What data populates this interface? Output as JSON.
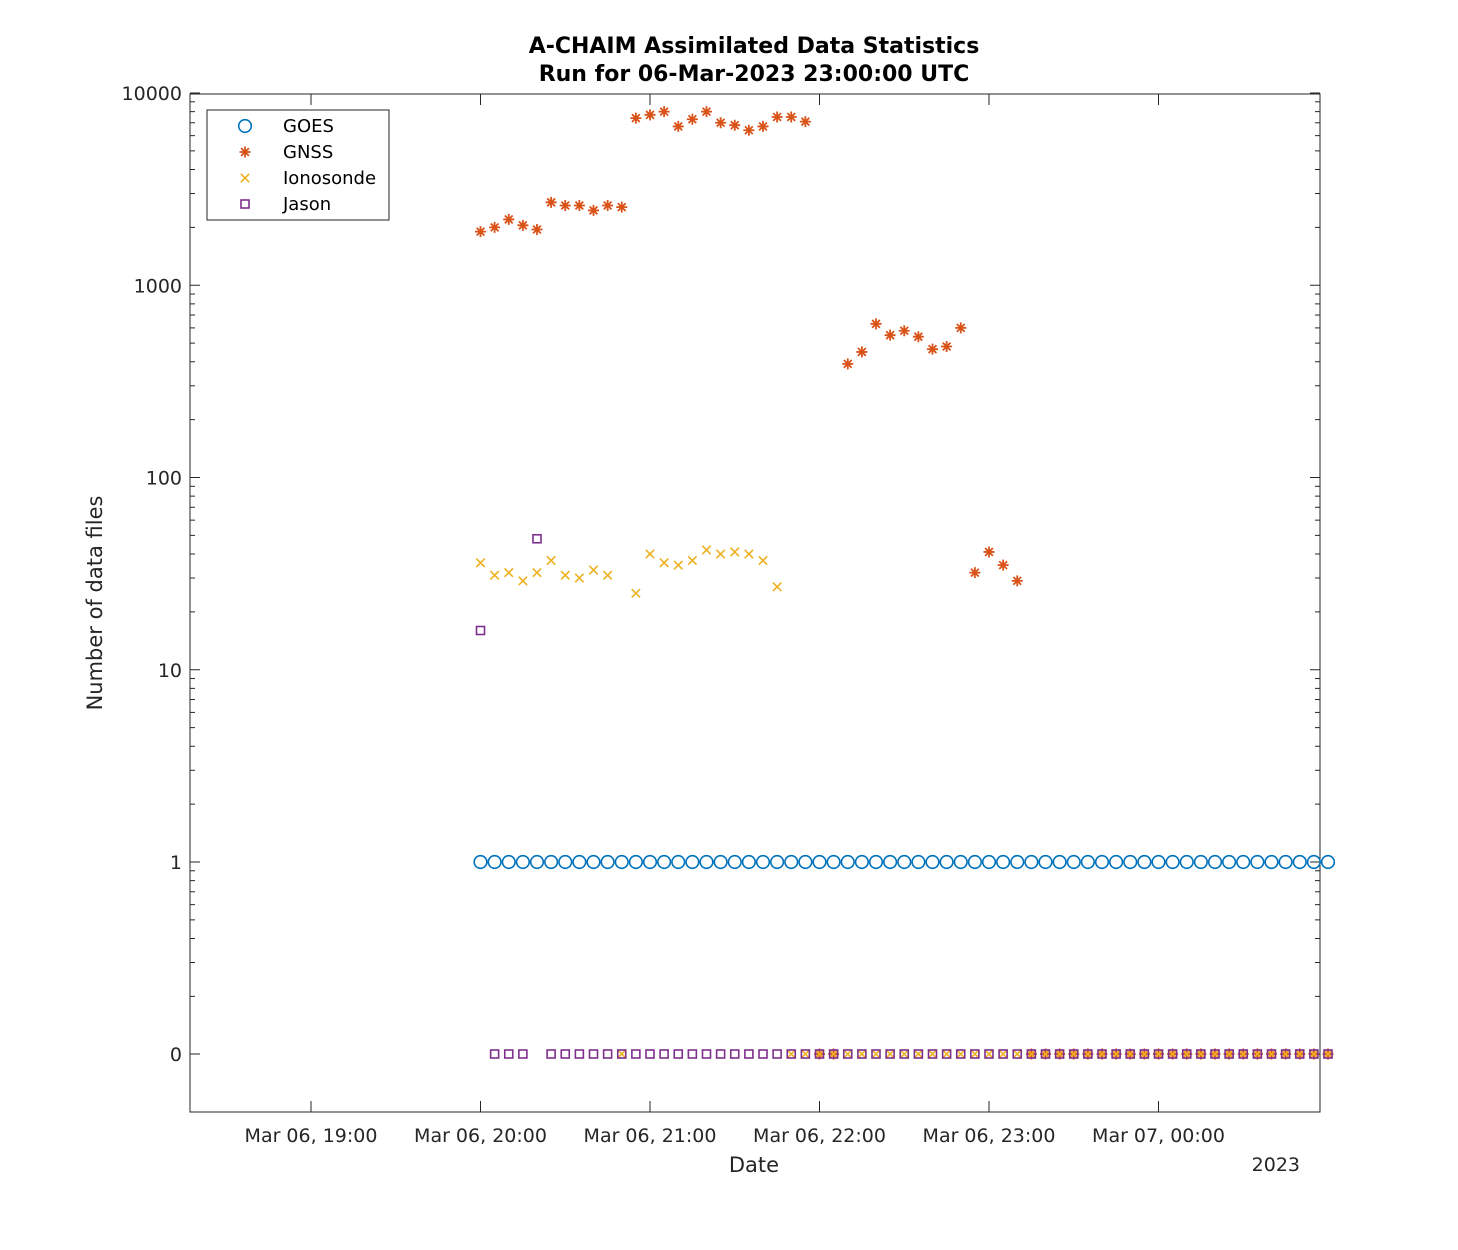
{
  "chart_data": {
    "type": "scatter",
    "title": "A-CHAIM Assimilated Data Statistics",
    "subtitle": "Run for 06-Mar-2023 23:00:00 UTC",
    "xlabel": "Date",
    "ylabel": "Number of data files",
    "x_year_label": "2023",
    "x_axis": {
      "type": "time",
      "range": [
        "2023-03-06 18:15",
        "2023-03-07 01:15"
      ],
      "tick_values": [
        "2023-03-06 19:00",
        "2023-03-06 20:00",
        "2023-03-06 21:00",
        "2023-03-06 22:00",
        "2023-03-06 23:00",
        "2023-03-07 00:00"
      ],
      "tick_labels": [
        "Mar 06, 19:00",
        "Mar 06, 20:00",
        "Mar 06, 21:00",
        "Mar 06, 22:00",
        "Mar 06, 23:00",
        "Mar 07, 00:00"
      ]
    },
    "y_axis": {
      "scale": "log",
      "note": "zero values drawn on a separate row below 0.1",
      "tick_values": [
        0,
        1,
        10,
        100,
        1000,
        10000
      ],
      "tick_labels": [
        "0",
        "1",
        "10",
        "100",
        "1000",
        "10000"
      ]
    },
    "grid": false,
    "legend_position": "top-left",
    "series": [
      {
        "name": "GOES",
        "marker": "circle",
        "color": "#0072BD",
        "x_start": "2023-03-06 20:00",
        "x_step_minutes": 5,
        "values": [
          1,
          1,
          1,
          1,
          1,
          1,
          1,
          1,
          1,
          1,
          1,
          1,
          1,
          1,
          1,
          1,
          1,
          1,
          1,
          1,
          1,
          1,
          1,
          1,
          1,
          1,
          1,
          1,
          1,
          1,
          1,
          1,
          1,
          1,
          1,
          1,
          1,
          1,
          1,
          1,
          1,
          1,
          1,
          1,
          1,
          1,
          1,
          1,
          1,
          1,
          1,
          1,
          1,
          1,
          1,
          1,
          1,
          1,
          1,
          1,
          1
        ]
      },
      {
        "name": "GNSS",
        "marker": "asterisk",
        "color": "#D95319",
        "x_start": "2023-03-06 20:00",
        "x_step_minutes": 5,
        "values": [
          1900,
          2000,
          2200,
          2050,
          1950,
          2700,
          2600,
          2600,
          2450,
          2600,
          2550,
          7400,
          7700,
          8000,
          6700,
          7300,
          8000,
          7000,
          6800,
          6400,
          6700,
          7500,
          7500,
          7100,
          0,
          0,
          390,
          450,
          630,
          550,
          580,
          540,
          465,
          480,
          600,
          32,
          41,
          35,
          29,
          0,
          0,
          0,
          0,
          0,
          0,
          0,
          0,
          0,
          0,
          0,
          0,
          0,
          0,
          0,
          0,
          0,
          0,
          0,
          0,
          0,
          0
        ]
      },
      {
        "name": "Ionosonde",
        "marker": "cross",
        "color": "#EDB120",
        "x_start": "2023-03-06 20:00",
        "x_step_minutes": 5,
        "values": [
          36,
          31,
          32,
          29,
          32,
          37,
          31,
          30,
          33,
          31,
          0,
          25,
          40,
          36,
          35,
          37,
          42,
          40,
          41,
          40,
          37,
          27,
          0,
          0,
          0,
          0,
          0,
          0,
          0,
          0,
          0,
          0,
          0,
          0,
          0,
          0,
          0,
          0,
          0,
          0,
          0,
          0,
          0,
          0,
          0,
          0,
          0,
          0,
          0,
          0,
          0,
          0,
          0,
          0,
          0,
          0,
          0,
          0,
          0,
          0,
          0
        ]
      },
      {
        "name": "Jason",
        "marker": "square",
        "color": "#7E2F8E",
        "x_start": "2023-03-06 20:00",
        "x_step_minutes": 5,
        "values": [
          16,
          0,
          0,
          0,
          48,
          0,
          0,
          0,
          0,
          0,
          0,
          0,
          0,
          0,
          0,
          0,
          0,
          0,
          0,
          0,
          0,
          0,
          0,
          0,
          0,
          0,
          0,
          0,
          0,
          0,
          0,
          0,
          0,
          0,
          0,
          0,
          0,
          0,
          0,
          0,
          0,
          0,
          0,
          0,
          0,
          0,
          0,
          0,
          0,
          0,
          0,
          0,
          0,
          0,
          0,
          0,
          0,
          0,
          0,
          0,
          0
        ]
      }
    ]
  }
}
